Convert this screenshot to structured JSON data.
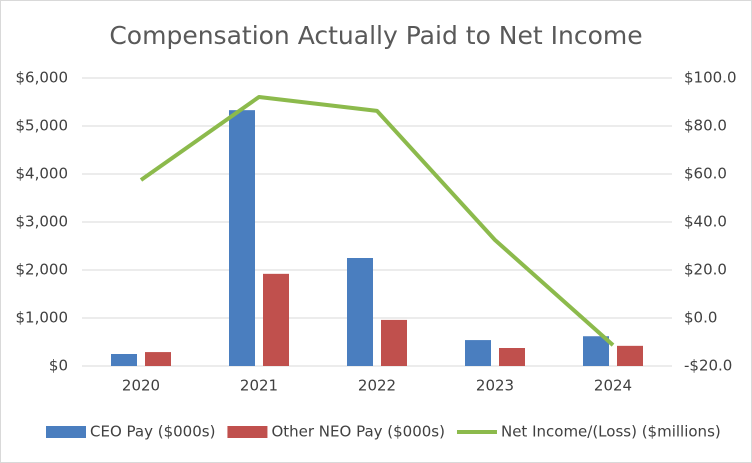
{
  "chart_data": {
    "type": "bar",
    "title": "Compensation Actually Paid to Net Income",
    "categories": [
      "2020",
      "2021",
      "2022",
      "2023",
      "2024"
    ],
    "series": [
      {
        "name": "CEO Pay ($000s)",
        "type": "bar",
        "color": "#4a7ebf",
        "values": [
          250,
          5330,
          2250,
          540,
          620
        ]
      },
      {
        "name": "Other NEO Pay ($000s)",
        "type": "bar",
        "color": "#c0504d",
        "values": [
          290,
          1920,
          960,
          375,
          420
        ]
      },
      {
        "name": "Net Income/(Loss) ($millions)",
        "type": "line",
        "axis": "y2",
        "color": "#8cba4c",
        "values": [
          57.5,
          92.1,
          86.3,
          32.5,
          -11.3
        ]
      }
    ],
    "ylim": [
      0,
      6000
    ],
    "yticks": [
      {
        "value": 0,
        "label": "$0"
      },
      {
        "value": 1000,
        "label": "$1,000"
      },
      {
        "value": 2000,
        "label": "$2,000"
      },
      {
        "value": 3000,
        "label": "$3,000"
      },
      {
        "value": 4000,
        "label": "$4,000"
      },
      {
        "value": 5000,
        "label": "$5,000"
      },
      {
        "value": 6000,
        "label": "$6,000"
      }
    ],
    "y2lim": [
      -20,
      100
    ],
    "y2ticks": [
      {
        "value": -20,
        "label": "-$20.0"
      },
      {
        "value": 0,
        "label": "$0.0"
      },
      {
        "value": 20,
        "label": "$20.0"
      },
      {
        "value": 40,
        "label": "$40.0"
      },
      {
        "value": 60,
        "label": "$60.0"
      },
      {
        "value": 80,
        "label": "$80.0"
      },
      {
        "value": 100,
        "label": "$100.0"
      }
    ],
    "grid": true,
    "legend": "bottom"
  }
}
